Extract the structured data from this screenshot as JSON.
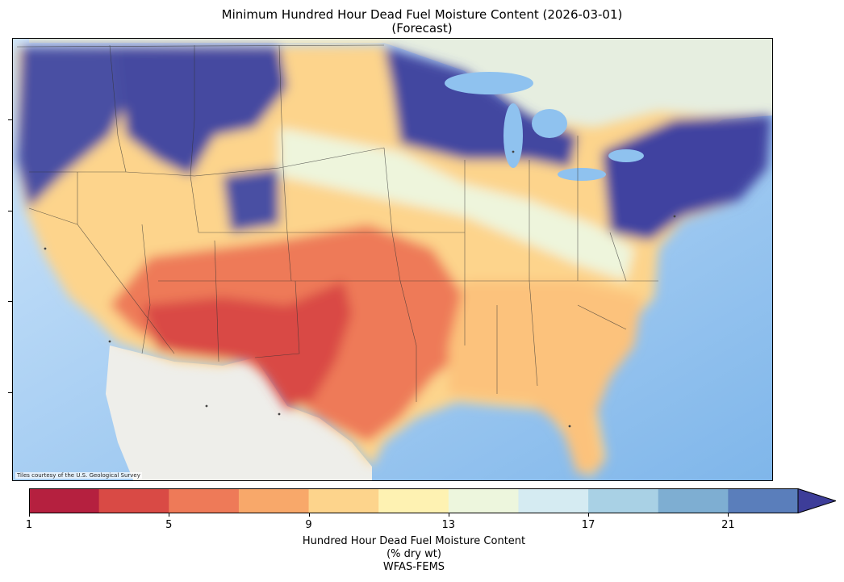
{
  "title_line1": "Minimum Hundred Hour Dead Fuel Moisture Content (2026-03-01)",
  "title_line2": "(Forecast)",
  "attribution": "Tiles courtesy of the U.S. Geological Survey",
  "colorbar": {
    "label_line1": "Hundred Hour Dead Fuel Moisture Content",
    "label_line2": "(% dry wt)",
    "label_line3": "WFAS-FEMS",
    "ticks": [
      "1",
      "5",
      "9",
      "13",
      "17",
      "21"
    ],
    "colors": [
      "#b5203f",
      "#d94a45",
      "#ee7a58",
      "#f8a86a",
      "#fdd48c",
      "#fef2b2",
      "#edf6dd",
      "#d5ebf2",
      "#a9d1e5",
      "#7eaed2",
      "#5a7ebb",
      "#3d3d99"
    ],
    "extend": "max"
  },
  "regions": {
    "pacific_northwest": "#4a4fa3",
    "northern_rockies": "#454aa0",
    "great_lakes": "#4347a0",
    "northeast": "#3f43a0",
    "california_coast": "#fdd48c",
    "desert_southwest": "#d94a45",
    "west_texas": "#d94a45",
    "southern_plains": "#ee7a58",
    "southeast": "#fcc27c",
    "central_plains": "#fdd48c",
    "ocean": "#9cc8f0",
    "mexico_land": "#eeeeea"
  }
}
